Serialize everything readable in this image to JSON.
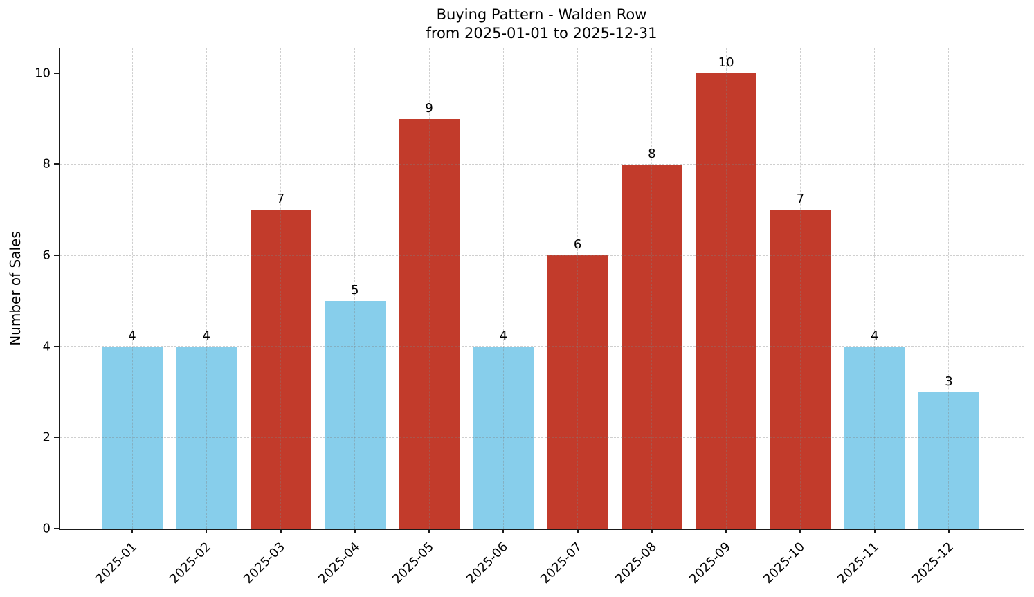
{
  "title": {
    "line1": "Buying Pattern - Walden Row",
    "line2": "from 2025-01-01 to 2025-12-31"
  },
  "axes": {
    "ylabel": "Number of Sales"
  },
  "chart_data": {
    "type": "bar",
    "title": "Buying Pattern - Walden Row",
    "subtitle": "from 2025-01-01 to 2025-12-31",
    "xlabel": "",
    "ylabel": "Number of Sales",
    "categories": [
      "2025-01",
      "2025-02",
      "2025-03",
      "2025-04",
      "2025-05",
      "2025-06",
      "2025-07",
      "2025-08",
      "2025-09",
      "2025-10",
      "2025-11",
      "2025-12"
    ],
    "values": [
      4,
      4,
      7,
      5,
      9,
      4,
      6,
      8,
      10,
      7,
      4,
      3
    ],
    "bar_colors": [
      "#87CEEB",
      "#87CEEB",
      "#C23B2B",
      "#87CEEB",
      "#C23B2B",
      "#87CEEB",
      "#C23B2B",
      "#C23B2B",
      "#C23B2B",
      "#C23B2B",
      "#87CEEB",
      "#87CEEB"
    ],
    "yticks": [
      0,
      2,
      4,
      6,
      8,
      10
    ],
    "ylim": [
      0,
      10.56
    ],
    "grid": "dashed, both axes, drawn above bars",
    "legend": "none",
    "value_labels_shown": true,
    "x_tick_rotation_deg": 45
  },
  "colors": {
    "bar_low": "#87CEEB",
    "bar_high": "#C23B2B",
    "grid": "rgba(130,130,130,0.38)",
    "spine": "#1a1a1a",
    "background": "#ffffff",
    "text": "#000000"
  }
}
